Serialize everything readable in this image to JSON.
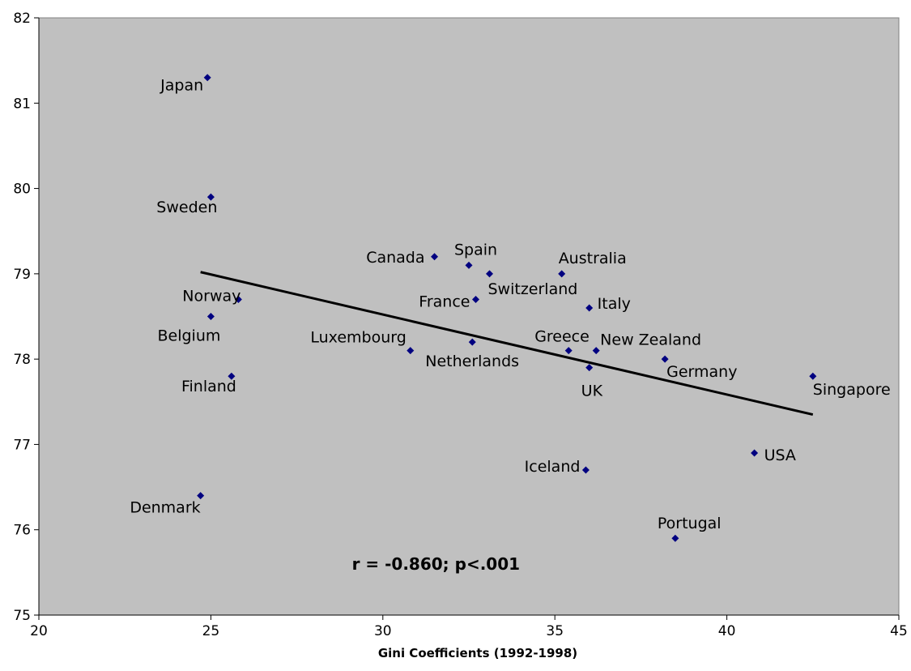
{
  "chart_data": {
    "type": "scatter",
    "title": "",
    "xlabel": "Gini Coefficients (1992-1998)",
    "ylabel": "",
    "xlim": [
      20,
      45
    ],
    "ylim": [
      75,
      82
    ],
    "x_ticks": [
      20,
      25,
      30,
      35,
      40,
      45
    ],
    "y_ticks": [
      75,
      76,
      77,
      78,
      79,
      80,
      81,
      82
    ],
    "grid": false,
    "legend": "none",
    "colors": {
      "plot_background": "#c0c0c0",
      "marker": "#000080",
      "trendline": "#000000"
    },
    "points": [
      {
        "label": "Japan",
        "x": 24.9,
        "y": 81.3
      },
      {
        "label": "Sweden",
        "x": 25.0,
        "y": 79.9
      },
      {
        "label": "Norway",
        "x": 25.8,
        "y": 78.7
      },
      {
        "label": "Belgium",
        "x": 25.0,
        "y": 78.5
      },
      {
        "label": "Finland",
        "x": 25.6,
        "y": 77.8
      },
      {
        "label": "Denmark",
        "x": 24.7,
        "y": 76.4
      },
      {
        "label": "Luxembourg",
        "x": 30.8,
        "y": 78.1
      },
      {
        "label": "Canada",
        "x": 31.5,
        "y": 79.2
      },
      {
        "label": "Spain",
        "x": 32.5,
        "y": 79.1
      },
      {
        "label": "Switzerland",
        "x": 33.1,
        "y": 79.0
      },
      {
        "label": "France",
        "x": 32.7,
        "y": 78.7
      },
      {
        "label": "Netherlands",
        "x": 32.6,
        "y": 78.2
      },
      {
        "label": "Australia",
        "x": 35.2,
        "y": 79.0
      },
      {
        "label": "Italy",
        "x": 36.0,
        "y": 78.6
      },
      {
        "label": "Greece",
        "x": 35.4,
        "y": 78.1
      },
      {
        "label": "New Zealand",
        "x": 36.2,
        "y": 78.1
      },
      {
        "label": "UK",
        "x": 36.0,
        "y": 77.9
      },
      {
        "label": "Germany",
        "x": 38.2,
        "y": 78.0
      },
      {
        "label": "Singapore",
        "x": 42.5,
        "y": 77.8
      },
      {
        "label": "USA",
        "x": 40.8,
        "y": 76.9
      },
      {
        "label": "Iceland",
        "x": 35.9,
        "y": 76.7
      },
      {
        "label": "Portugal",
        "x": 38.5,
        "y": 75.9
      }
    ],
    "trendline": {
      "x": [
        24.7,
        42.5
      ],
      "y": [
        79.02,
        77.35
      ]
    },
    "annotations": [
      {
        "text": "r = -0.860; p<.001",
        "x": 29.1,
        "y": 75.6
      }
    ]
  }
}
